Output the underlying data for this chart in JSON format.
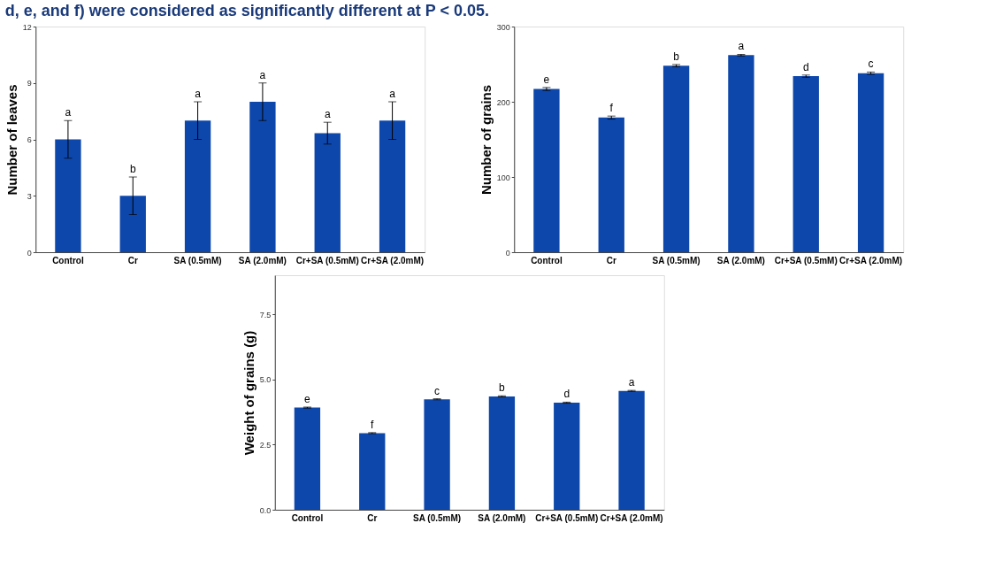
{
  "chart_data": [
    {
      "type": "bar",
      "title": "d, e, and f) were considered as significantly different at P < 0.05.",
      "ylabel": "Number of leaves",
      "categories": [
        "Control",
        "Cr",
        "SA (0.5mM)",
        "SA (2.0mM)",
        "Cr+SA (0.5mM)",
        "Cr+SA (2.0mM)"
      ],
      "series": [
        {
          "color": "#0d47ab",
          "values": [
            6,
            3,
            7,
            8,
            6.33,
            7
          ],
          "errors": [
            1,
            1,
            1,
            1,
            0.58,
            1
          ]
        }
      ],
      "ylim": [
        0,
        12
      ],
      "yticks": [
        0,
        3,
        6,
        9,
        12
      ],
      "grid": false,
      "annotations": [
        "a",
        "b",
        "a",
        "a",
        "a",
        "a"
      ]
    },
    {
      "type": "bar",
      "ylabel": "Number of grains",
      "categories": [
        "Control",
        "Cr",
        "SA (0.5mM)",
        "SA (2.0mM)",
        "Cr+SA (0.5mM)",
        "Cr+SA (2.0mM)"
      ],
      "series": [
        {
          "color": "#0d47ab",
          "values": [
            217,
            179,
            248,
            262,
            234,
            238
          ],
          "errors": [
            2,
            2,
            1.5,
            1,
            1.5,
            1.5
          ]
        }
      ],
      "ylim": [
        0,
        300
      ],
      "yticks": [
        0,
        100,
        200,
        300
      ],
      "grid": false,
      "annotations": [
        "e",
        "f",
        "b",
        "a",
        "d",
        "c"
      ]
    },
    {
      "type": "bar",
      "ylabel": "Weight of grains (g)",
      "categories": [
        "Control",
        "Cr",
        "SA (0.5mM)",
        "SA (2.0mM)",
        "Cr+SA (0.5mM)",
        "Cr+SA (2.0mM)"
      ],
      "series": [
        {
          "color": "#0d47ab",
          "values": [
            3.92,
            2.94,
            4.24,
            4.35,
            4.11,
            4.56
          ],
          "errors": [
            0.02,
            0.02,
            0.02,
            0.02,
            0.02,
            0.02
          ]
        }
      ],
      "ylim": [
        0,
        9
      ],
      "yticks": [
        {
          "value": 0,
          "label": "0.0"
        },
        2.5,
        {
          "value": 5,
          "label": "5.0"
        },
        7.5
      ],
      "grid": false,
      "annotations": [
        "e",
        "f",
        "c",
        "b",
        "d",
        "a"
      ]
    }
  ]
}
